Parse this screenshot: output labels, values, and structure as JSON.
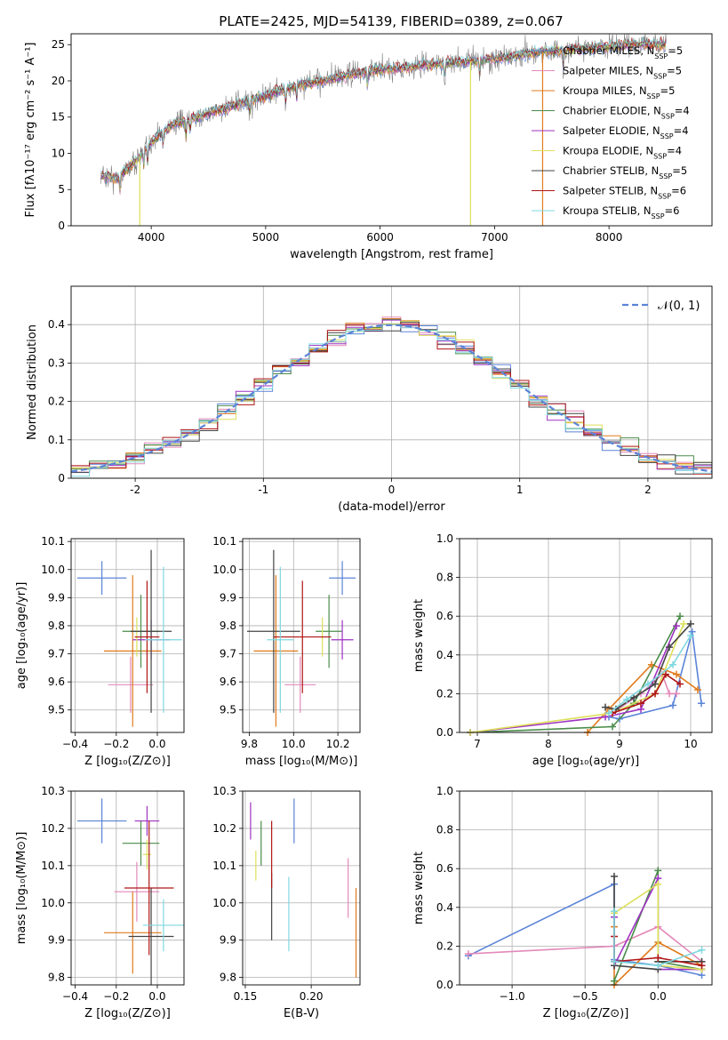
{
  "chart_data": [
    {
      "id": "spectrum",
      "type": "line",
      "title": "PLATE=2425, MJD=54139, FIBERID=0389, z=0.067",
      "xlabel": "wavelength [Angstrom, rest frame]",
      "ylabel": "Flux [fλ10⁻¹⁷ erg cm⁻² s⁻¹ A⁻¹]",
      "xlim": [
        3300,
        8900
      ],
      "ylim": [
        0,
        26.5
      ],
      "xticks": [
        4000,
        5000,
        6000,
        7000,
        8000
      ],
      "yticks": [
        0,
        5,
        10,
        15,
        20,
        25
      ],
      "legend_position": "top-right",
      "legend": [
        {
          "label": "Chabrier MILES, N_SSP=5",
          "color": "#5b84d8"
        },
        {
          "label": "Salpeter MILES, N_SSP=5",
          "color": "#e389b9"
        },
        {
          "label": "Kroupa MILES, N_SSP=5",
          "color": "#e07b1d"
        },
        {
          "label": "Chabrier ELODIE, N_SSP=4",
          "color": "#4a8c4a"
        },
        {
          "label": "Salpeter ELODIE, N_SSP=4",
          "color": "#9e32c2"
        },
        {
          "label": "Kroupa ELODIE, N_SSP=4",
          "color": "#dde05a"
        },
        {
          "label": "Chabrier STELIB, N_SSP=5",
          "color": "#444444"
        },
        {
          "label": "Salpeter STELIB, N_SSP=6",
          "color": "#b01515"
        },
        {
          "label": "Kroupa STELIB, N_SSP=6",
          "color": "#7fd8e0"
        }
      ],
      "continuum": {
        "x": [
          3550,
          3700,
          3800,
          3900,
          4000,
          4100,
          4200,
          4300,
          4500,
          4700,
          4900,
          5100,
          5300,
          5500,
          5800,
          6000,
          6300,
          6600,
          7000,
          7400,
          7800,
          8200,
          8500
        ],
        "y": [
          7,
          6.5,
          8,
          9.5,
          11.5,
          13,
          14,
          14.5,
          15.5,
          16.5,
          17.5,
          18.5,
          19.5,
          20,
          21,
          21.5,
          22,
          22.5,
          23,
          24,
          24.5,
          25,
          25
        ]
      },
      "series_color": "#7fd8e0",
      "observed_color": "#808080"
    },
    {
      "id": "residuals",
      "type": "histogram",
      "xlabel": "(data-model)/error",
      "ylabel": "Normed distribution",
      "xlim": [
        -2.5,
        2.5
      ],
      "ylim": [
        0,
        0.5
      ],
      "xticks": [
        -2,
        -1,
        0,
        1,
        2
      ],
      "yticks": [
        0,
        0.1,
        0.2,
        0.3,
        0.4
      ],
      "legend_position": "top-right",
      "reference_label": "𝒩(0, 1)",
      "reference_color": "#5b84d8"
    },
    {
      "id": "age_vs_Z",
      "type": "errorbar",
      "xlabel": "Z [log₁₀(Z/Z⊙)]",
      "ylabel": "age  [log₁₀(age/yr)]",
      "xlim": [
        -0.42,
        0.13
      ],
      "ylim": [
        9.42,
        10.11
      ],
      "xticks": [
        -0.4,
        -0.2,
        0.0
      ],
      "xticklabels": [
        "−0.4",
        "−0.2",
        "0.0"
      ],
      "yticks": [
        9.5,
        9.6,
        9.7,
        9.8,
        9.9,
        10.0,
        10.1
      ],
      "yticklabels": [
        "9.5",
        "9.6",
        "9.7",
        "9.8",
        "9.9",
        "10.0",
        "10.1"
      ],
      "points": [
        {
          "x": -0.27,
          "y": 9.97,
          "xerr": 0.12,
          "yerr": 0.06,
          "color": "#5b84d8"
        },
        {
          "x": -0.13,
          "y": 9.59,
          "xerr": 0.11,
          "yerr": 0.1,
          "color": "#e389b9"
        },
        {
          "x": -0.12,
          "y": 9.71,
          "xerr": 0.14,
          "yerr": 0.27,
          "color": "#e07b1d"
        },
        {
          "x": -0.08,
          "y": 9.78,
          "xerr": 0.09,
          "yerr": 0.13,
          "color": "#4a8c4a"
        },
        {
          "x": -0.03,
          "y": 9.75,
          "xerr": 0.09,
          "yerr": 0.07,
          "color": "#9e32c2"
        },
        {
          "x": -0.1,
          "y": 9.76,
          "xerr": 0.01,
          "yerr": 0.07,
          "color": "#dde05a"
        },
        {
          "x": -0.03,
          "y": 9.78,
          "xerr": 0.1,
          "yerr": 0.29,
          "color": "#444444"
        },
        {
          "x": -0.05,
          "y": 9.76,
          "xerr": 0.06,
          "yerr": 0.2,
          "color": "#b01515"
        },
        {
          "x": 0.03,
          "y": 9.75,
          "xerr": 0.09,
          "yerr": 0.26,
          "color": "#7fd8e0"
        }
      ]
    },
    {
      "id": "age_vs_mass",
      "type": "errorbar",
      "xlabel": "mass [log₁₀(M/M⊙)]",
      "ylabel": "",
      "xlim": [
        9.77,
        10.3
      ],
      "ylim": [
        9.42,
        10.11
      ],
      "xticks": [
        9.8,
        10.0,
        10.2
      ],
      "xticklabels": [
        "9.8",
        "10.0",
        "10.2"
      ],
      "yticks": [
        9.5,
        9.6,
        9.7,
        9.8,
        9.9,
        10.0,
        10.1
      ],
      "yticklabels": [
        "9.5",
        "9.6",
        "9.7",
        "9.8",
        "9.9",
        "10.0",
        "10.1"
      ],
      "points": [
        {
          "x": 10.22,
          "y": 9.97,
          "xerr": 0.06,
          "yerr": 0.06,
          "color": "#5b84d8"
        },
        {
          "x": 10.03,
          "y": 9.59,
          "xerr": 0.07,
          "yerr": 0.1,
          "color": "#e389b9"
        },
        {
          "x": 9.92,
          "y": 9.71,
          "xerr": 0.1,
          "yerr": 0.27,
          "color": "#e07b1d"
        },
        {
          "x": 10.16,
          "y": 9.78,
          "xerr": 0.06,
          "yerr": 0.13,
          "color": "#4a8c4a"
        },
        {
          "x": 10.22,
          "y": 9.75,
          "xerr": 0.05,
          "yerr": 0.07,
          "color": "#9e32c2"
        },
        {
          "x": 10.13,
          "y": 9.76,
          "xerr": 0.01,
          "yerr": 0.07,
          "color": "#dde05a"
        },
        {
          "x": 9.91,
          "y": 9.78,
          "xerr": 0.12,
          "yerr": 0.29,
          "color": "#444444"
        },
        {
          "x": 10.04,
          "y": 9.76,
          "xerr": 0.13,
          "yerr": 0.2,
          "color": "#b01515"
        },
        {
          "x": 9.94,
          "y": 9.75,
          "xerr": 0.06,
          "yerr": 0.26,
          "color": "#7fd8e0"
        }
      ]
    },
    {
      "id": "mass_weight_vs_age",
      "type": "line",
      "xlabel": "age  [log₁₀(age/yr)]",
      "ylabel": "mass weight",
      "xlim": [
        6.75,
        10.3
      ],
      "ylim": [
        0,
        1.0
      ],
      "xticks": [
        7,
        8,
        9,
        10
      ],
      "xticklabels": [
        "7",
        "8",
        "9",
        "10"
      ],
      "yticks": [
        0,
        0.2,
        0.4,
        0.6,
        0.8,
        1.0
      ],
      "yticklabels": [
        "0.0",
        "0.2",
        "0.4",
        "0.6",
        "0.8",
        "1.0"
      ],
      "series": [
        {
          "color": "#5b84d8",
          "x": [
            8.85,
            9.0,
            9.75,
            10.02,
            10.15
          ],
          "y": [
            0.08,
            0.07,
            0.14,
            0.52,
            0.15
          ]
        },
        {
          "color": "#e389b9",
          "x": [
            8.9,
            9.3,
            9.6,
            9.7,
            9.8
          ],
          "y": [
            0.1,
            0.2,
            0.3,
            0.2,
            0.2
          ]
        },
        {
          "color": "#e07b1d",
          "x": [
            8.55,
            8.85,
            9.45,
            9.8,
            10.1
          ],
          "y": [
            0.0,
            0.12,
            0.35,
            0.3,
            0.22
          ]
        },
        {
          "color": "#4a8c4a",
          "x": [
            6.9,
            8.9,
            9.2,
            9.85
          ],
          "y": [
            0.0,
            0.03,
            0.15,
            0.6
          ]
        },
        {
          "color": "#9e32c2",
          "x": [
            6.9,
            8.8,
            9.3,
            9.8
          ],
          "y": [
            0.0,
            0.08,
            0.12,
            0.55
          ]
        },
        {
          "color": "#dde05a",
          "x": [
            6.9,
            8.9,
            9.5,
            9.9
          ],
          "y": [
            0.0,
            0.1,
            0.2,
            0.56
          ]
        },
        {
          "color": "#444444",
          "x": [
            8.8,
            8.95,
            9.2,
            9.5,
            9.7,
            10.0
          ],
          "y": [
            0.13,
            0.12,
            0.18,
            0.25,
            0.44,
            0.56
          ]
        },
        {
          "color": "#b01515",
          "x": [
            8.9,
            9.3,
            9.5,
            9.65,
            9.85
          ],
          "y": [
            0.1,
            0.15,
            0.2,
            0.3,
            0.25
          ]
        },
        {
          "color": "#7fd8e0",
          "x": [
            8.85,
            9.1,
            9.4,
            9.75,
            10.0
          ],
          "y": [
            0.1,
            0.17,
            0.25,
            0.35,
            0.5
          ]
        }
      ]
    },
    {
      "id": "mass_vs_Z",
      "type": "errorbar",
      "xlabel": "Z [log₁₀(Z/Z⊙)]",
      "ylabel": "mass [log₁₀(M/M⊙)]",
      "xlim": [
        -0.42,
        0.13
      ],
      "ylim": [
        9.78,
        10.3
      ],
      "xticks": [
        -0.4,
        -0.2,
        0.0
      ],
      "xticklabels": [
        "−0.4",
        "−0.2",
        "0.0"
      ],
      "yticks": [
        9.8,
        9.9,
        10.0,
        10.1,
        10.2,
        10.3
      ],
      "yticklabels": [
        "9.8",
        "9.9",
        "10.0",
        "10.1",
        "10.2",
        "10.3"
      ],
      "points": [
        {
          "x": -0.27,
          "y": 10.22,
          "xerr": 0.12,
          "yerr": 0.06,
          "color": "#5b84d8"
        },
        {
          "x": -0.1,
          "y": 10.03,
          "xerr": 0.11,
          "yerr": 0.08,
          "color": "#e389b9"
        },
        {
          "x": -0.12,
          "y": 9.92,
          "xerr": 0.14,
          "yerr": 0.11,
          "color": "#e07b1d"
        },
        {
          "x": -0.08,
          "y": 10.16,
          "xerr": 0.09,
          "yerr": 0.06,
          "color": "#4a8c4a"
        },
        {
          "x": -0.05,
          "y": 10.22,
          "xerr": 0.06,
          "yerr": 0.04,
          "color": "#9e32c2"
        },
        {
          "x": -0.05,
          "y": 10.13,
          "xerr": 0.02,
          "yerr": 0.04,
          "color": "#dde05a"
        },
        {
          "x": -0.03,
          "y": 9.91,
          "xerr": 0.11,
          "yerr": 0.13,
          "color": "#444444"
        },
        {
          "x": -0.04,
          "y": 10.04,
          "xerr": 0.12,
          "yerr": 0.18,
          "color": "#b01515"
        },
        {
          "x": 0.03,
          "y": 9.94,
          "xerr": 0.1,
          "yerr": 0.07,
          "color": "#7fd8e0"
        }
      ]
    },
    {
      "id": "mass_vs_ebv",
      "type": "errorbar",
      "xlabel": "E(B-V)",
      "ylabel": "",
      "xlim": [
        0.148,
        0.237
      ],
      "ylim": [
        9.78,
        10.3
      ],
      "xticks": [
        0.15,
        0.2
      ],
      "xticklabels": [
        "0.15",
        "0.20"
      ],
      "yticks": [
        9.8,
        9.9,
        10.0,
        10.1,
        10.2,
        10.3
      ],
      "yticklabels": [
        "9.8",
        "9.9",
        "10.0",
        "10.1",
        "10.2",
        "10.3"
      ],
      "points": [
        {
          "x": 0.187,
          "y": 10.22,
          "xerr": 0,
          "yerr": 0.06,
          "color": "#5b84d8"
        },
        {
          "x": 0.228,
          "y": 10.04,
          "xerr": 0,
          "yerr": 0.08,
          "color": "#e389b9"
        },
        {
          "x": 0.234,
          "y": 9.92,
          "xerr": 0,
          "yerr": 0.12,
          "color": "#e07b1d"
        },
        {
          "x": 0.162,
          "y": 10.16,
          "xerr": 0,
          "yerr": 0.06,
          "color": "#4a8c4a"
        },
        {
          "x": 0.154,
          "y": 10.22,
          "xerr": 0,
          "yerr": 0.05,
          "color": "#9e32c2"
        },
        {
          "x": 0.158,
          "y": 10.1,
          "xerr": 0,
          "yerr": 0.04,
          "color": "#dde05a"
        },
        {
          "x": 0.17,
          "y": 9.99,
          "xerr": 0,
          "yerr": 0.09,
          "color": "#444444"
        },
        {
          "x": 0.17,
          "y": 10.13,
          "xerr": 0,
          "yerr": 0.09,
          "color": "#b01515"
        },
        {
          "x": 0.183,
          "y": 9.97,
          "xerr": 0,
          "yerr": 0.1,
          "color": "#7fd8e0"
        }
      ]
    },
    {
      "id": "mass_weight_vs_Z",
      "type": "line",
      "xlabel": "Z [log₁₀(Z/Z⊙)]",
      "ylabel": "mass weight",
      "xlim": [
        -1.36,
        0.37
      ],
      "ylim": [
        0,
        1.0
      ],
      "xticks": [
        -1.0,
        -0.5,
        0.0
      ],
      "xticklabels": [
        "−1.0",
        "−0.5",
        "0.0"
      ],
      "yticks": [
        0,
        0.2,
        0.4,
        0.6,
        0.8,
        1.0
      ],
      "yticklabels": [
        "0.0",
        "0.2",
        "0.4",
        "0.6",
        "0.8",
        "1.0"
      ],
      "series": [
        {
          "color": "#5b84d8",
          "x": [
            -1.3,
            -0.3,
            -0.3,
            0.0,
            0.3
          ],
          "y": [
            0.15,
            0.52,
            0.13,
            0.1,
            0.05
          ]
        },
        {
          "color": "#e389b9",
          "x": [
            -1.3,
            -0.3,
            0.0,
            0.3
          ],
          "y": [
            0.16,
            0.2,
            0.3,
            0.12
          ]
        },
        {
          "color": "#e07b1d",
          "x": [
            -0.3,
            -0.3,
            0.0,
            0.3
          ],
          "y": [
            0.3,
            0.0,
            0.22,
            0.1
          ]
        },
        {
          "color": "#4a8c4a",
          "x": [
            -0.3,
            0.0,
            0.0,
            0.3
          ],
          "y": [
            0.02,
            0.59,
            0.12,
            0.08
          ]
        },
        {
          "color": "#9e32c2",
          "x": [
            -0.3,
            -0.3,
            0.0,
            0.0,
            0.3
          ],
          "y": [
            0.35,
            0.1,
            0.55,
            0.08,
            0.08
          ]
        },
        {
          "color": "#dde05a",
          "x": [
            -0.3,
            0.0,
            0.0,
            0.3
          ],
          "y": [
            0.37,
            0.52,
            0.1,
            0.08
          ]
        },
        {
          "color": "#444444",
          "x": [
            -0.3,
            -0.3,
            0.0,
            0.0,
            0.3
          ],
          "y": [
            0.56,
            0.1,
            0.08,
            0.12,
            0.12
          ]
        },
        {
          "color": "#b01515",
          "x": [
            -0.3,
            -0.3,
            0.0,
            0.3
          ],
          "y": [
            0.25,
            0.12,
            0.14,
            0.1
          ]
        },
        {
          "color": "#7fd8e0",
          "x": [
            -0.3,
            -0.3,
            0.0,
            0.3
          ],
          "y": [
            0.38,
            0.12,
            0.1,
            0.18
          ]
        }
      ]
    }
  ]
}
